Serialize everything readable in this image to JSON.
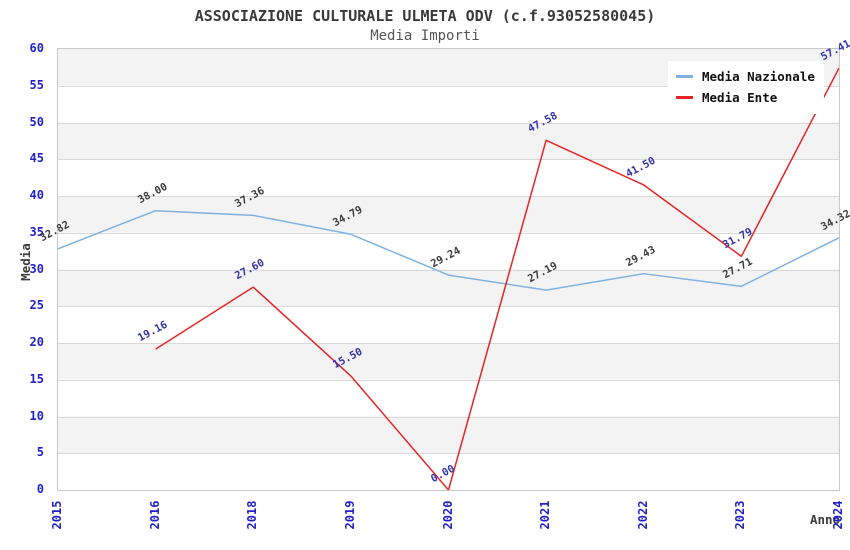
{
  "title": "ASSOCIAZIONE CULTURALE ULMETA ODV (c.f.93052580045)",
  "subtitle": "Media Importi",
  "chart_data": {
    "type": "line",
    "categories": [
      "2015",
      "2016",
      "2018",
      "2019",
      "2020",
      "2021",
      "2022",
      "2023",
      "2024"
    ],
    "series": [
      {
        "name": "Media Nazionale",
        "color": "#7fb2e2",
        "label_color": "#3c3c3c",
        "values": [
          32.82,
          38.0,
          37.36,
          34.79,
          29.24,
          27.19,
          29.43,
          27.71,
          34.32
        ]
      },
      {
        "name": "Media Ente",
        "color": "#e62626",
        "label_color": "#3333aa",
        "values": [
          null,
          19.16,
          27.6,
          15.5,
          0.0,
          47.58,
          41.5,
          31.79,
          57.41
        ]
      }
    ],
    "xlabel": "Anno",
    "ylabel": "Media",
    "ylim": [
      0,
      60
    ],
    "ytick_step": 5,
    "grid": "horizontal",
    "band_colors": [
      "#ffffff",
      "#f3f3f3"
    ],
    "tick_color": "#2222cc",
    "legend_position": "top-right"
  }
}
